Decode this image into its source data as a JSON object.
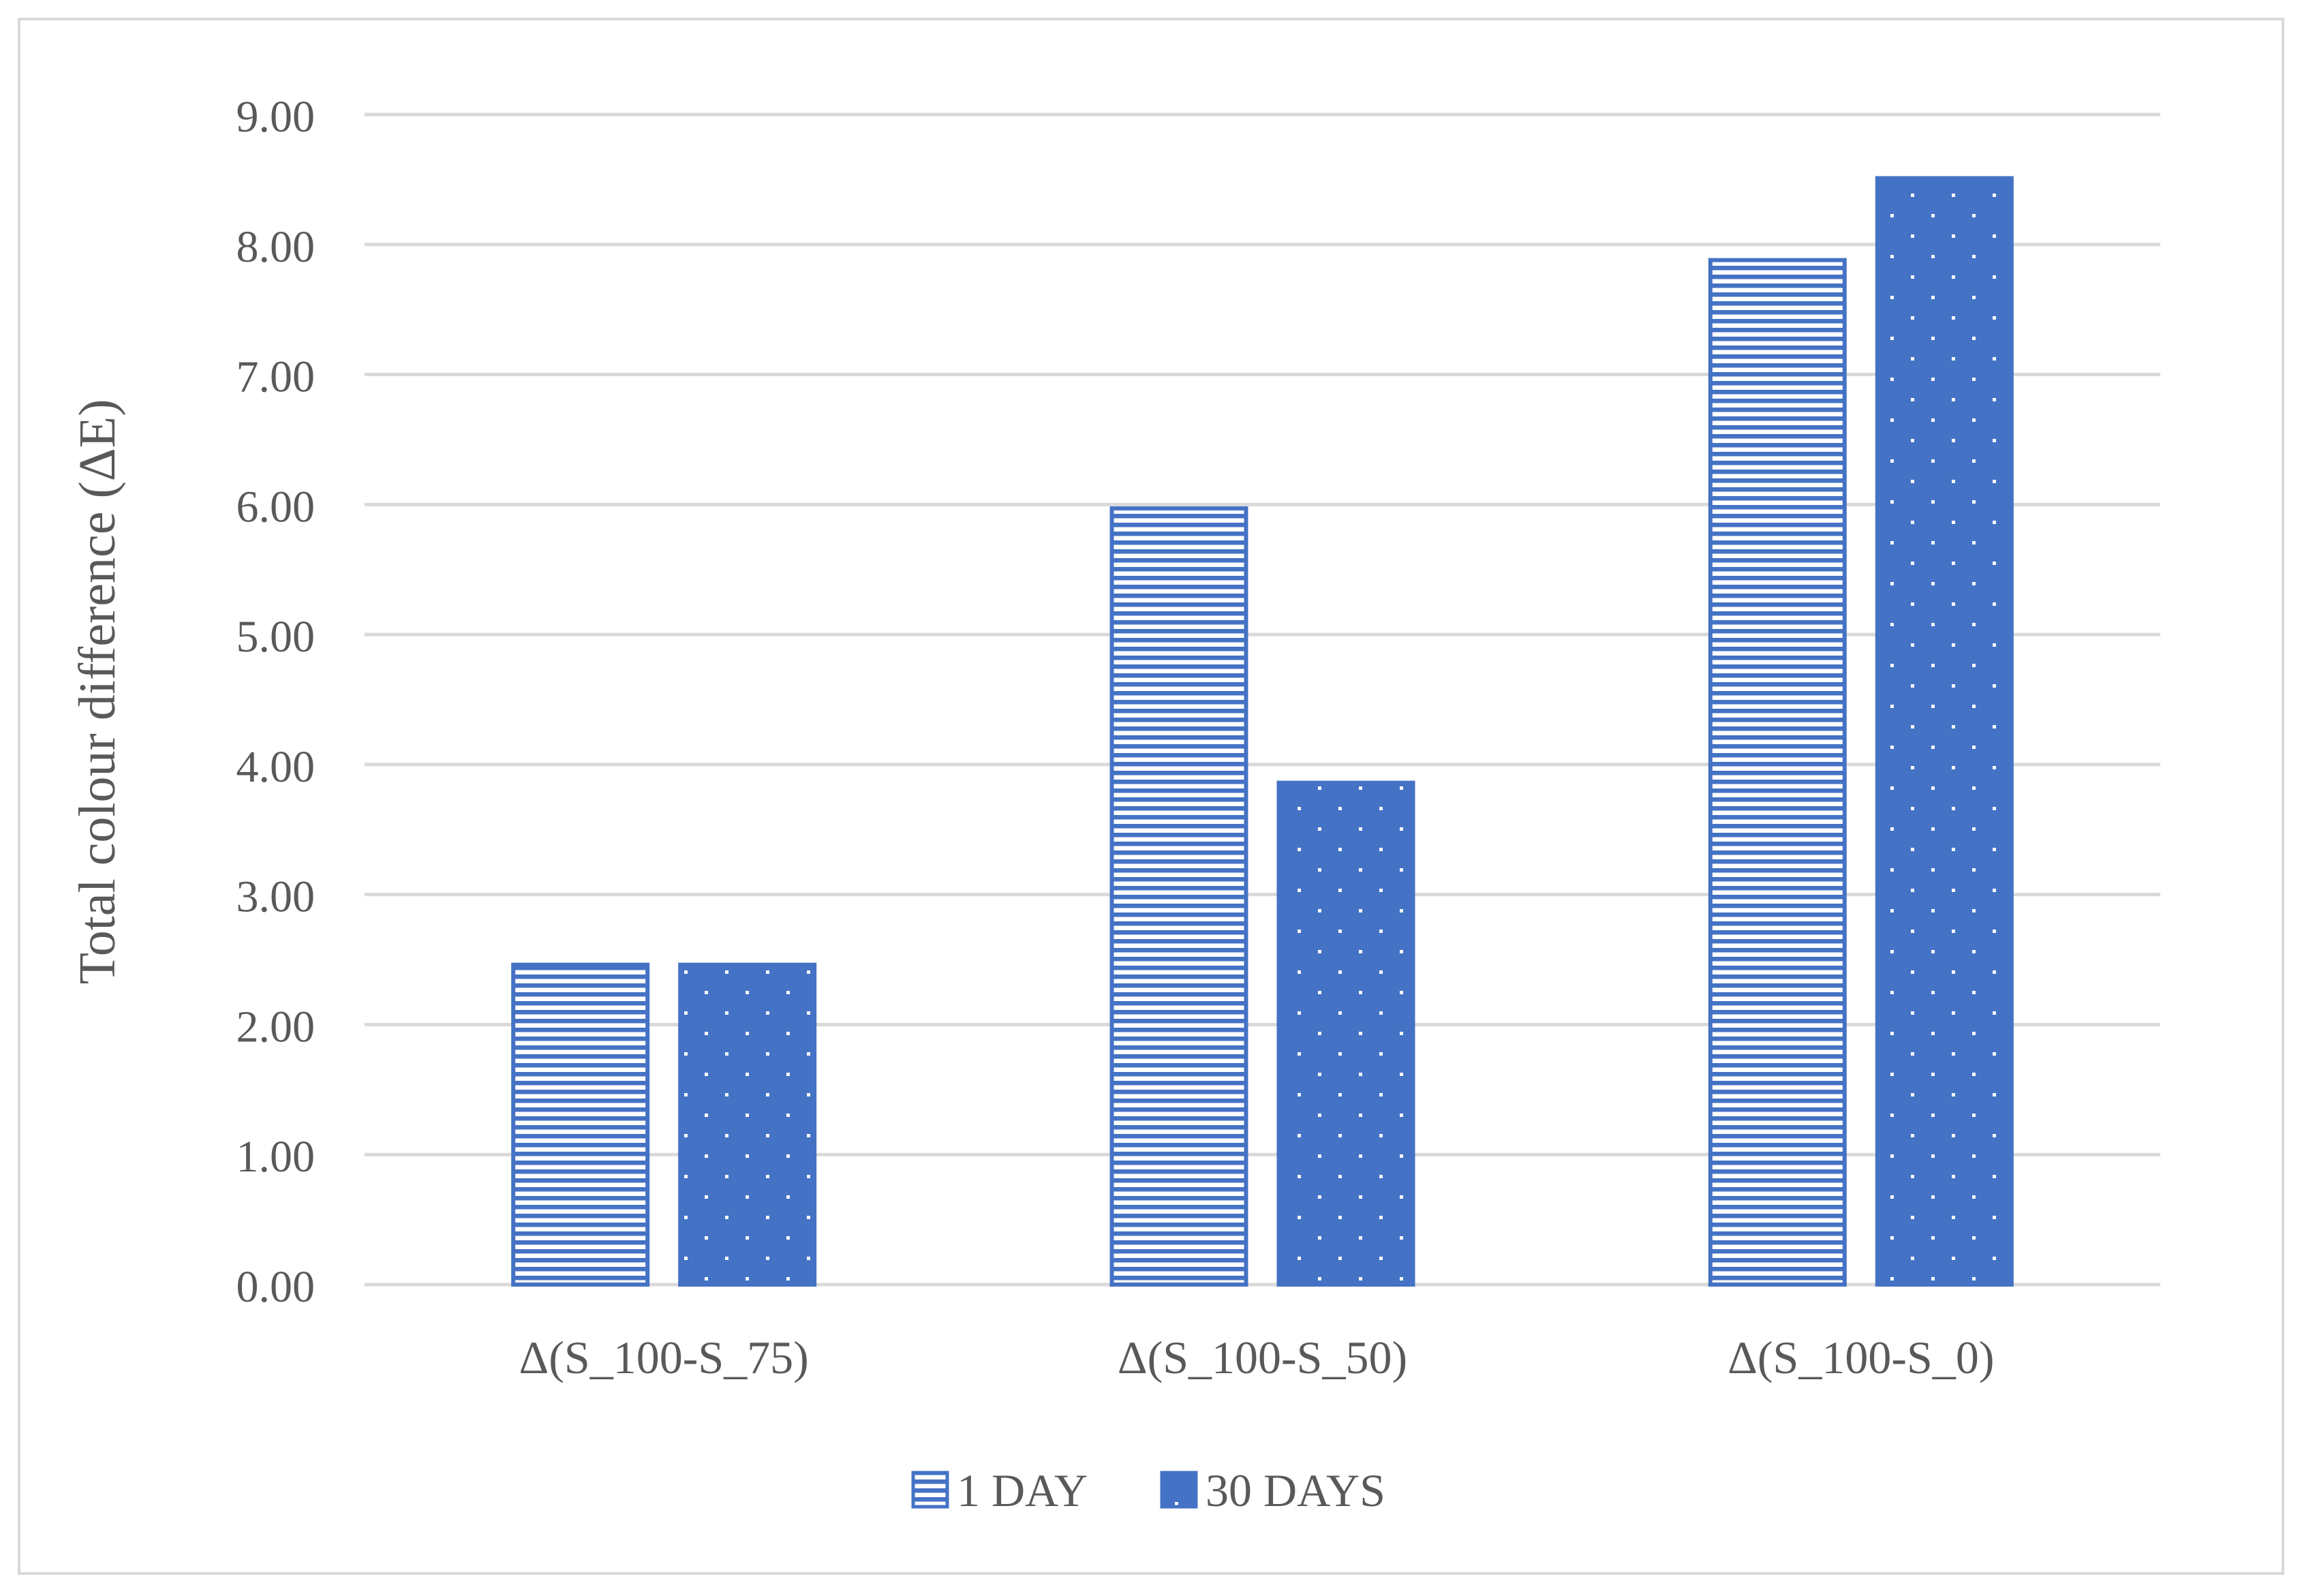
{
  "chart_data": {
    "type": "bar",
    "title": "",
    "xlabel": "",
    "ylabel": "Total colour difference (ΔE)",
    "ylim": [
      0,
      9
    ],
    "yticks": [
      "0.00",
      "1.00",
      "2.00",
      "3.00",
      "4.00",
      "5.00",
      "6.00",
      "7.00",
      "8.00",
      "9.00"
    ],
    "categories": [
      "Δ(S_100-S_75)",
      "Δ(S_100-S_50)",
      "Δ(S_100-S_0)"
    ],
    "series": [
      {
        "name": "1 DAY",
        "values": [
          2.46,
          5.97,
          7.88
        ],
        "pattern": "horizontal-stripes",
        "color": "#4472C4"
      },
      {
        "name": "30 DAYS",
        "values": [
          2.46,
          3.86,
          8.51
        ],
        "pattern": "dots",
        "color": "#4472C4"
      }
    ],
    "grid": true,
    "legend": "bottom"
  }
}
